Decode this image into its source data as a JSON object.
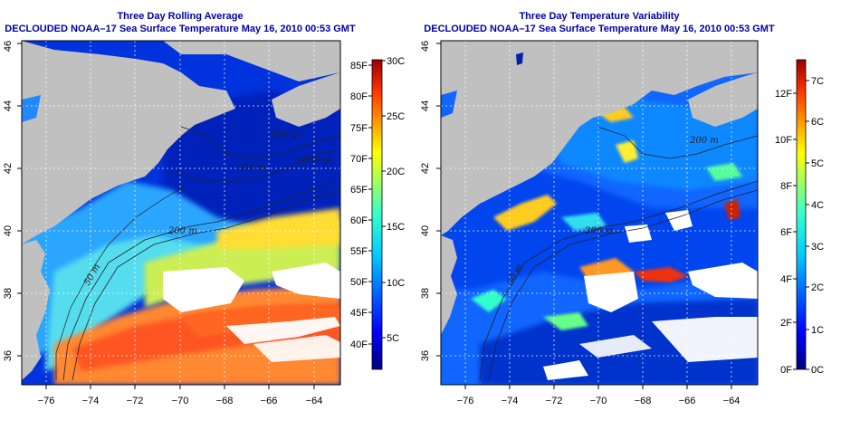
{
  "colors": {
    "land": "#c0c0c0",
    "nodata": "#ffffff",
    "title": "#0000aa",
    "grid": "#ffffff"
  },
  "left_panel": {
    "title_line1": "Three Day Rolling Average",
    "title_line2": "DECLOUDED NOAA–17 Sea Surface Temperature May 16, 2010 00:53 GMT",
    "x_ticks": [
      "−76",
      "−74",
      "−72",
      "−70",
      "−68",
      "−66",
      "−64"
    ],
    "y_ticks": [
      "36",
      "38",
      "40",
      "42",
      "44",
      "46"
    ],
    "contour_labels": [
      "200 m",
      "50 m",
      "1000 m",
      "200 m",
      "200 m"
    ],
    "colorbar": {
      "units_f": [
        "40F",
        "45F",
        "50F",
        "55F",
        "60F",
        "65F",
        "70F",
        "75F",
        "80F",
        "85F"
      ],
      "units_c": [
        "5C",
        "10C",
        "15C",
        "20C",
        "25C",
        "30C"
      ],
      "colormap": [
        "#00007f",
        "#0000ff",
        "#0066ff",
        "#00ccff",
        "#33ffcc",
        "#99ff66",
        "#ffff00",
        "#ff9900",
        "#ff3300",
        "#990000"
      ]
    }
  },
  "right_panel": {
    "title_line1": "Three Day Temperature Variability",
    "title_line2": "DECLOUDED NOAA–17 Sea Surface Temperature May 16, 2010 00:53 GMT",
    "x_ticks": [
      "−76",
      "−74",
      "−72",
      "−70",
      "−68",
      "−66",
      "−64"
    ],
    "y_ticks": [
      "36",
      "38",
      "40",
      "42",
      "44",
      "46"
    ],
    "contour_labels": [
      "200 m",
      "50 m",
      "200 m"
    ],
    "colorbar": {
      "units_f": [
        "0F",
        "2F",
        "4F",
        "6F",
        "8F",
        "10F",
        "12F"
      ],
      "units_c": [
        "0C",
        "1C",
        "2C",
        "3C",
        "4C",
        "5C",
        "6C",
        "7C"
      ],
      "colormap": [
        "#00007f",
        "#0000ff",
        "#0066ff",
        "#00ccff",
        "#33ffcc",
        "#99ff66",
        "#ffff00",
        "#ff9900",
        "#ff3300",
        "#990000"
      ]
    }
  }
}
